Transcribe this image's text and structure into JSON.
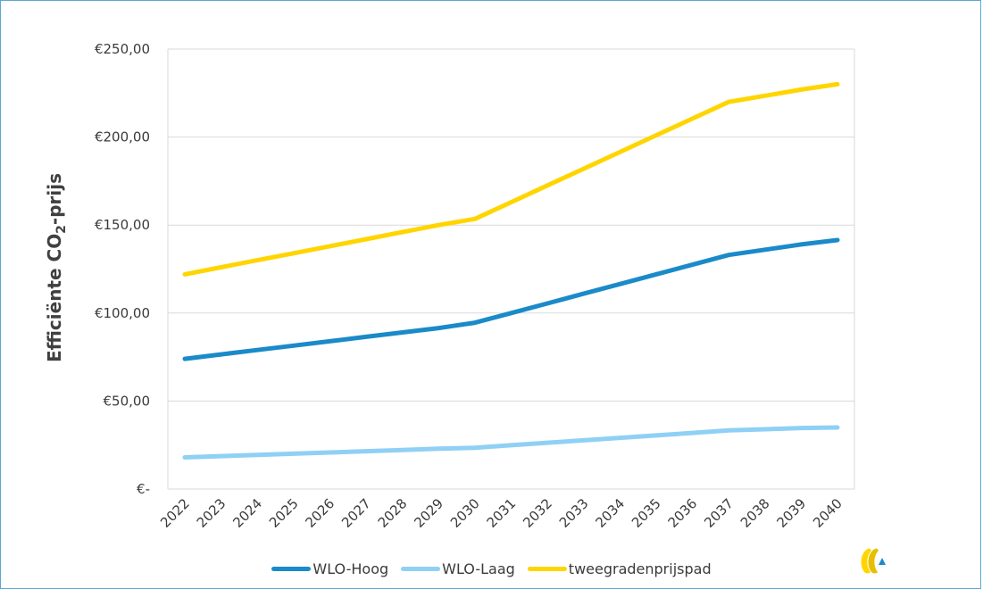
{
  "chart_data": {
    "type": "line",
    "title": "",
    "xlabel": "",
    "ylabel": "Efficiënte CO",
    "ylabel_subscript": "2",
    "ylabel_suffix": "-prijs",
    "x": [
      "2022",
      "2023",
      "2024",
      "2025",
      "2026",
      "2027",
      "2028",
      "2029",
      "2030",
      "2031",
      "2032",
      "2033",
      "2034",
      "2035",
      "2036",
      "2037",
      "2038",
      "2039",
      "2040"
    ],
    "ylim": [
      0,
      250
    ],
    "yticks": [
      {
        "value": 0,
        "label": "€-"
      },
      {
        "value": 50,
        "label": "€50,00"
      },
      {
        "value": 100,
        "label": "€100,00"
      },
      {
        "value": 150,
        "label": "€150,00"
      },
      {
        "value": 200,
        "label": "€200,00"
      },
      {
        "value": 250,
        "label": "€250,00"
      }
    ],
    "grid": true,
    "legend_position": "bottom",
    "series": [
      {
        "name": "WLO-Hoog",
        "color": "#1a8ac9",
        "values": [
          74,
          76.5,
          79,
          81.5,
          84,
          86.5,
          89,
          91.5,
          94.5,
          100,
          105.5,
          111,
          116.5,
          122,
          127.5,
          133,
          136,
          139,
          141.5
        ]
      },
      {
        "name": "WLO-Laag",
        "color": "#8fd0f5",
        "values": [
          18,
          18.7,
          19.4,
          20.1,
          20.8,
          21.5,
          22.2,
          22.9,
          23.5,
          24.9,
          26.3,
          27.7,
          29.1,
          30.5,
          31.9,
          33.3,
          34,
          34.7,
          35
        ]
      },
      {
        "name": "tweegradenprijspad",
        "color": "#ffd500",
        "values": [
          122,
          126,
          130,
          134,
          138,
          142,
          146,
          150,
          153.5,
          163,
          172.5,
          182,
          191.5,
          201,
          210.5,
          220,
          223.5,
          227,
          230
        ]
      }
    ]
  },
  "logo": {
    "name": "logo-icon",
    "colors": [
      "#ffd500",
      "#e0b400",
      "#1a8ac9"
    ]
  }
}
